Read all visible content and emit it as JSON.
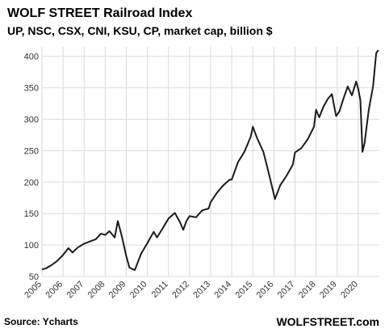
{
  "chart_data": {
    "type": "line",
    "title": "WOLF STREET Railroad Index",
    "subtitle": "UP, NSC, CSX, CNI, KSU, CP, market cap, billion $",
    "xlabel": "",
    "ylabel": "",
    "xlim": [
      2005.0,
      2021.0
    ],
    "ylim": [
      50,
      415
    ],
    "yticks": [
      50,
      100,
      150,
      200,
      250,
      300,
      350,
      400
    ],
    "xticks": [
      "2005",
      "2006",
      "2007",
      "2008",
      "2009",
      "2010",
      "2011",
      "2012",
      "2013",
      "2014",
      "2015",
      "2016",
      "2017",
      "2018",
      "2019",
      "2020"
    ],
    "grid": true,
    "legend": "none",
    "line_color": "#1a1a1a",
    "series": [
      {
        "x": [
          2005.0,
          2005.2,
          2005.45,
          2005.7,
          2006.0,
          2006.25,
          2006.45,
          2006.7,
          2007.0,
          2007.3,
          2007.55,
          2007.8,
          2008.0,
          2008.2,
          2008.45,
          2008.6,
          2008.8,
          2009.0,
          2009.15,
          2009.4,
          2009.7,
          2010.0,
          2010.3,
          2010.45,
          2010.7,
          2011.0,
          2011.3,
          2011.55,
          2011.7,
          2011.85,
          2012.0,
          2012.3,
          2012.6,
          2012.9,
          2013.0,
          2013.3,
          2013.6,
          2013.9,
          2014.0,
          2014.3,
          2014.6,
          2014.9,
          2015.0,
          2015.2,
          2015.5,
          2015.7,
          2015.9,
          2016.05,
          2016.3,
          2016.6,
          2016.9,
          2017.0,
          2017.3,
          2017.6,
          2017.9,
          2018.0,
          2018.15,
          2018.35,
          2018.55,
          2018.75,
          2018.95,
          2019.1,
          2019.3,
          2019.5,
          2019.7,
          2019.9,
          2020.0,
          2020.1,
          2020.2,
          2020.3,
          2020.5,
          2020.7,
          2020.85,
          2020.95
        ],
        "y": [
          61,
          63,
          68,
          74,
          84,
          95,
          88,
          96,
          102,
          106,
          109,
          118,
          116,
          122,
          112,
          138,
          112,
          82,
          64,
          60,
          86,
          103,
          121,
          112,
          125,
          142,
          151,
          136,
          124,
          138,
          146,
          144,
          155,
          158,
          168,
          183,
          195,
          204,
          204,
          232,
          248,
          272,
          288,
          270,
          248,
          222,
          194,
          173,
          195,
          210,
          228,
          247,
          254,
          268,
          288,
          315,
          303,
          320,
          332,
          340,
          305,
          312,
          333,
          352,
          338,
          360,
          348,
          330,
          248,
          262,
          315,
          352,
          405,
          410
        ]
      }
    ],
    "source": "Source: Ycharts",
    "brand": "WOLFSTREET.com"
  }
}
